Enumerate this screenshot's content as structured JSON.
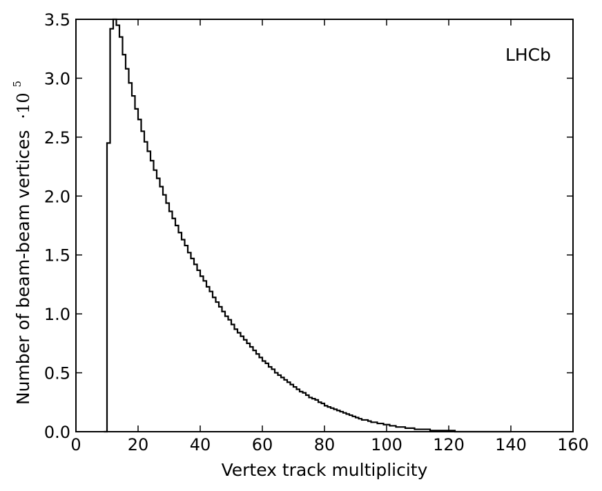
{
  "chart_data": {
    "type": "bar",
    "style": "step-histogram",
    "xlabel": "Vertex track multiplicity",
    "ylabel": "Number of beam-beam vertices",
    "y_multiplier": {
      "base": "·10",
      "exponent": "5"
    },
    "annotation": "LHCb",
    "xlim": [
      0,
      160
    ],
    "ylim": [
      0,
      3.5
    ],
    "xticks": [
      "0",
      "20",
      "40",
      "60",
      "80",
      "100",
      "120",
      "140",
      "160"
    ],
    "yticks": [
      "0.0",
      "0.5",
      "1.0",
      "1.5",
      "2.0",
      "2.5",
      "3.0",
      "3.5"
    ],
    "grid": false,
    "bin_width": 1,
    "bin_start": 9,
    "bin_end": 140,
    "values": [
      0,
      2.45,
      3.42,
      3.5,
      3.45,
      3.35,
      3.2,
      3.08,
      2.96,
      2.85,
      2.74,
      2.65,
      2.55,
      2.46,
      2.38,
      2.3,
      2.22,
      2.15,
      2.08,
      2.01,
      1.94,
      1.87,
      1.81,
      1.75,
      1.69,
      1.63,
      1.58,
      1.52,
      1.47,
      1.42,
      1.37,
      1.32,
      1.28,
      1.23,
      1.19,
      1.14,
      1.1,
      1.06,
      1.02,
      0.98,
      0.95,
      0.91,
      0.87,
      0.84,
      0.81,
      0.78,
      0.75,
      0.72,
      0.69,
      0.66,
      0.63,
      0.6,
      0.58,
      0.55,
      0.53,
      0.5,
      0.48,
      0.46,
      0.44,
      0.42,
      0.4,
      0.38,
      0.36,
      0.34,
      0.33,
      0.31,
      0.29,
      0.28,
      0.27,
      0.25,
      0.24,
      0.22,
      0.21,
      0.2,
      0.19,
      0.18,
      0.17,
      0.16,
      0.15,
      0.14,
      0.13,
      0.12,
      0.11,
      0.1,
      0.1,
      0.09,
      0.08,
      0.08,
      0.07,
      0.07,
      0.06,
      0.06,
      0.05,
      0.05,
      0.04,
      0.04,
      0.04,
      0.03,
      0.03,
      0.03,
      0.02,
      0.02,
      0.02,
      0.02,
      0.02,
      0.01,
      0.01,
      0.01,
      0.01,
      0.01,
      0.01,
      0.01,
      0.01,
      0.0,
      0.0,
      0.0,
      0.0,
      0.0,
      0.0,
      0.0,
      0.0,
      0.0,
      0.0,
      0.0,
      0.0,
      0.0,
      0.0,
      0.0,
      0.0,
      0.0,
      0.0
    ],
    "line_color": "#000000"
  }
}
